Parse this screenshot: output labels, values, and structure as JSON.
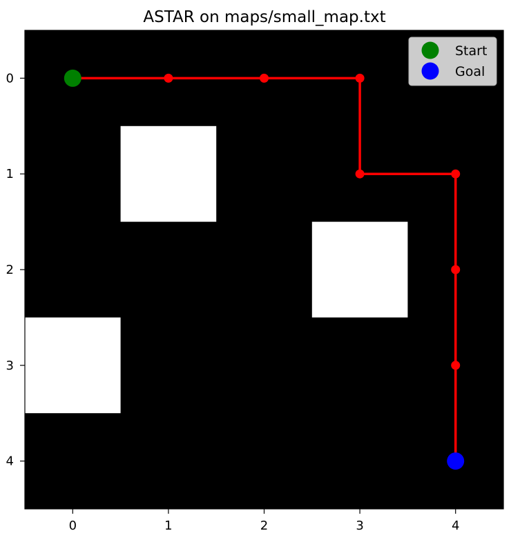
{
  "chart_data": {
    "type": "grid-path",
    "title": "ASTAR on maps/small_map.txt",
    "xlabel": "",
    "ylabel": "",
    "grid_size": [
      5,
      5
    ],
    "xlim": [
      -0.5,
      4.5
    ],
    "ylim": [
      4.5,
      -0.5
    ],
    "x_ticks": [
      0,
      1,
      2,
      3,
      4
    ],
    "y_ticks": [
      0,
      1,
      2,
      3,
      4
    ],
    "x_tick_labels": [
      "0",
      "1",
      "2",
      "3",
      "4"
    ],
    "y_tick_labels": [
      "0",
      "1",
      "2",
      "3",
      "4"
    ],
    "grid": false,
    "free_color": "#000000",
    "obstacle_color": "#ffffff",
    "obstacles": [
      {
        "row": 1,
        "col": 1
      },
      {
        "row": 2,
        "col": 3
      },
      {
        "row": 3,
        "col": 0
      }
    ],
    "path": [
      {
        "row": 0,
        "col": 0
      },
      {
        "row": 0,
        "col": 1
      },
      {
        "row": 0,
        "col": 2
      },
      {
        "row": 0,
        "col": 3
      },
      {
        "row": 1,
        "col": 3
      },
      {
        "row": 1,
        "col": 4
      },
      {
        "row": 2,
        "col": 4
      },
      {
        "row": 3,
        "col": 4
      },
      {
        "row": 4,
        "col": 4
      }
    ],
    "path_color": "#ff0000",
    "start": {
      "row": 0,
      "col": 0,
      "label": "Start",
      "color": "#008000"
    },
    "goal": {
      "row": 4,
      "col": 4,
      "label": "Goal",
      "color": "#0000ff"
    },
    "legend": {
      "placement": "top-right",
      "entries": [
        {
          "label": "Start",
          "color": "#008000"
        },
        {
          "label": "Goal",
          "color": "#0000ff"
        }
      ]
    }
  }
}
